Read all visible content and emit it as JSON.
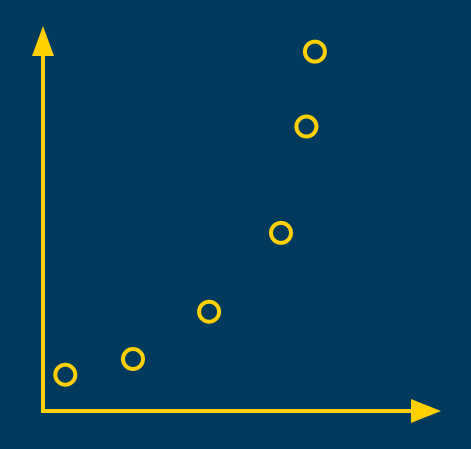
{
  "colors": {
    "background": "#013a5d",
    "accent": "#ffd100"
  },
  "chart_data": {
    "type": "scatter",
    "title": "",
    "xlabel": "",
    "ylabel": "",
    "grid": false,
    "legend": "none",
    "axis_style": "arrows",
    "marker": "hollow-circle",
    "xlim": [
      0,
      10
    ],
    "ylim": [
      0,
      10
    ],
    "points": [
      {
        "x": 1.0,
        "y": 1.2
      },
      {
        "x": 2.6,
        "y": 1.6
      },
      {
        "x": 4.4,
        "y": 2.8
      },
      {
        "x": 6.1,
        "y": 4.8
      },
      {
        "x": 6.7,
        "y": 7.5
      },
      {
        "x": 6.9,
        "y": 9.4
      }
    ]
  }
}
